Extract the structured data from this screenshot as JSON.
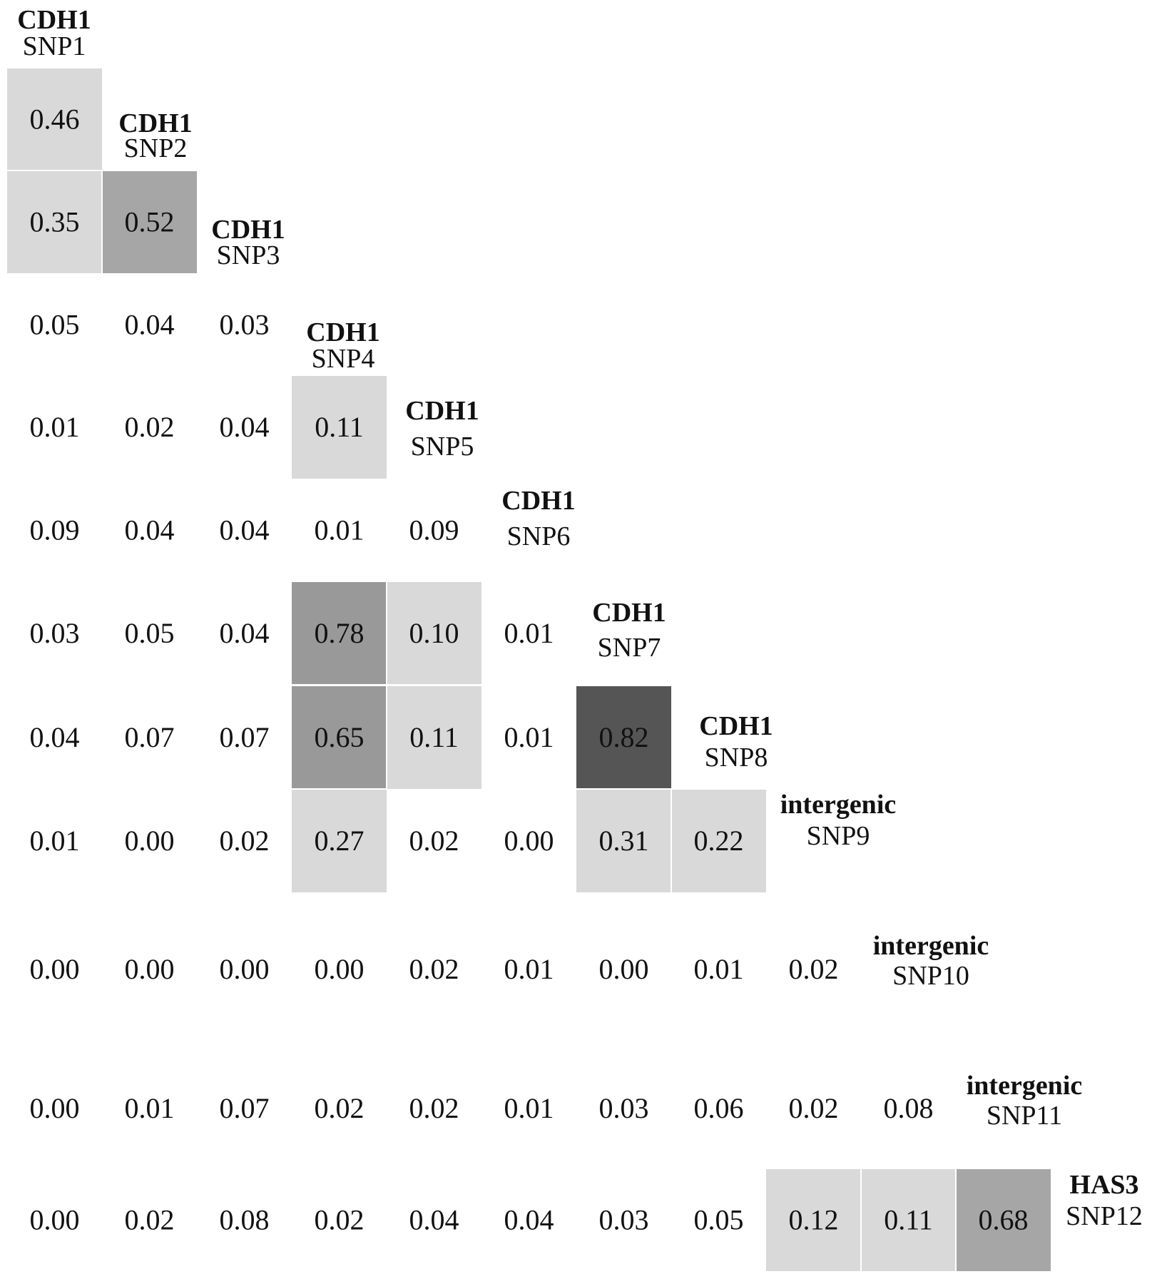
{
  "chart_data": {
    "type": "heatmap",
    "title": "",
    "xlabel": "",
    "ylabel": "",
    "legend": "none",
    "grid": false,
    "cell_colors": {
      "none": "#ffffff",
      "light": "#d9d9d9",
      "medium": "#a6a6a6",
      "medium_dark": "#999999",
      "dark": "#555555"
    },
    "snps": [
      {
        "gene": "CDH1",
        "snp": "SNP1"
      },
      {
        "gene": "CDH1",
        "snp": "SNP2"
      },
      {
        "gene": "CDH1",
        "snp": "SNP3"
      },
      {
        "gene": "CDH1",
        "snp": "SNP4"
      },
      {
        "gene": "CDH1",
        "snp": "SNP5"
      },
      {
        "gene": "CDH1",
        "snp": "SNP6"
      },
      {
        "gene": "CDH1",
        "snp": "SNP7"
      },
      {
        "gene": "CDH1",
        "snp": "SNP8"
      },
      {
        "gene": "intergenic",
        "snp": "SNP9"
      },
      {
        "gene": "intergenic",
        "snp": "SNP10"
      },
      {
        "gene": "intergenic",
        "snp": "SNP11"
      },
      {
        "gene": "HAS3",
        "snp": "SNP12"
      }
    ],
    "rows": [
      {
        "values": [
          "0.46"
        ],
        "shade": [
          "light"
        ]
      },
      {
        "values": [
          "0.35",
          "0.52"
        ],
        "shade": [
          "light",
          "medium"
        ]
      },
      {
        "values": [
          "0.05",
          "0.04",
          "0.03"
        ],
        "shade": [
          "none",
          "none",
          "none"
        ]
      },
      {
        "values": [
          "0.01",
          "0.02",
          "0.04",
          "0.11"
        ],
        "shade": [
          "none",
          "none",
          "none",
          "light"
        ]
      },
      {
        "values": [
          "0.09",
          "0.04",
          "0.04",
          "0.01",
          "0.09"
        ],
        "shade": [
          "none",
          "none",
          "none",
          "none",
          "none"
        ]
      },
      {
        "values": [
          "0.03",
          "0.05",
          "0.04",
          "0.78",
          "0.10",
          "0.01"
        ],
        "shade": [
          "none",
          "none",
          "none",
          "medium_dark",
          "light",
          "none"
        ]
      },
      {
        "values": [
          "0.04",
          "0.07",
          "0.07",
          "0.65",
          "0.11",
          "0.01",
          "0.82"
        ],
        "shade": [
          "none",
          "none",
          "none",
          "medium_dark",
          "light",
          "none",
          "dark"
        ]
      },
      {
        "values": [
          "0.01",
          "0.00",
          "0.02",
          "0.27",
          "0.02",
          "0.00",
          "0.31",
          "0.22"
        ],
        "shade": [
          "none",
          "none",
          "none",
          "light",
          "none",
          "none",
          "light",
          "light"
        ]
      },
      {
        "values": [
          "0.00",
          "0.00",
          "0.00",
          "0.00",
          "0.02",
          "0.01",
          "0.00",
          "0.01",
          "0.02"
        ],
        "shade": [
          "none",
          "none",
          "none",
          "none",
          "none",
          "none",
          "none",
          "none",
          "none"
        ]
      },
      {
        "values": [
          "0.00",
          "0.01",
          "0.07",
          "0.02",
          "0.02",
          "0.01",
          "0.03",
          "0.06",
          "0.02",
          "0.08"
        ],
        "shade": [
          "none",
          "none",
          "none",
          "none",
          "none",
          "none",
          "none",
          "none",
          "none",
          "none"
        ]
      },
      {
        "values": [
          "0.00",
          "0.02",
          "0.08",
          "0.02",
          "0.04",
          "0.04",
          "0.03",
          "0.05",
          "0.12",
          "0.11",
          "0.68"
        ],
        "shade": [
          "none",
          "none",
          "none",
          "none",
          "none",
          "none",
          "none",
          "none",
          "light",
          "light",
          "medium"
        ]
      }
    ]
  }
}
